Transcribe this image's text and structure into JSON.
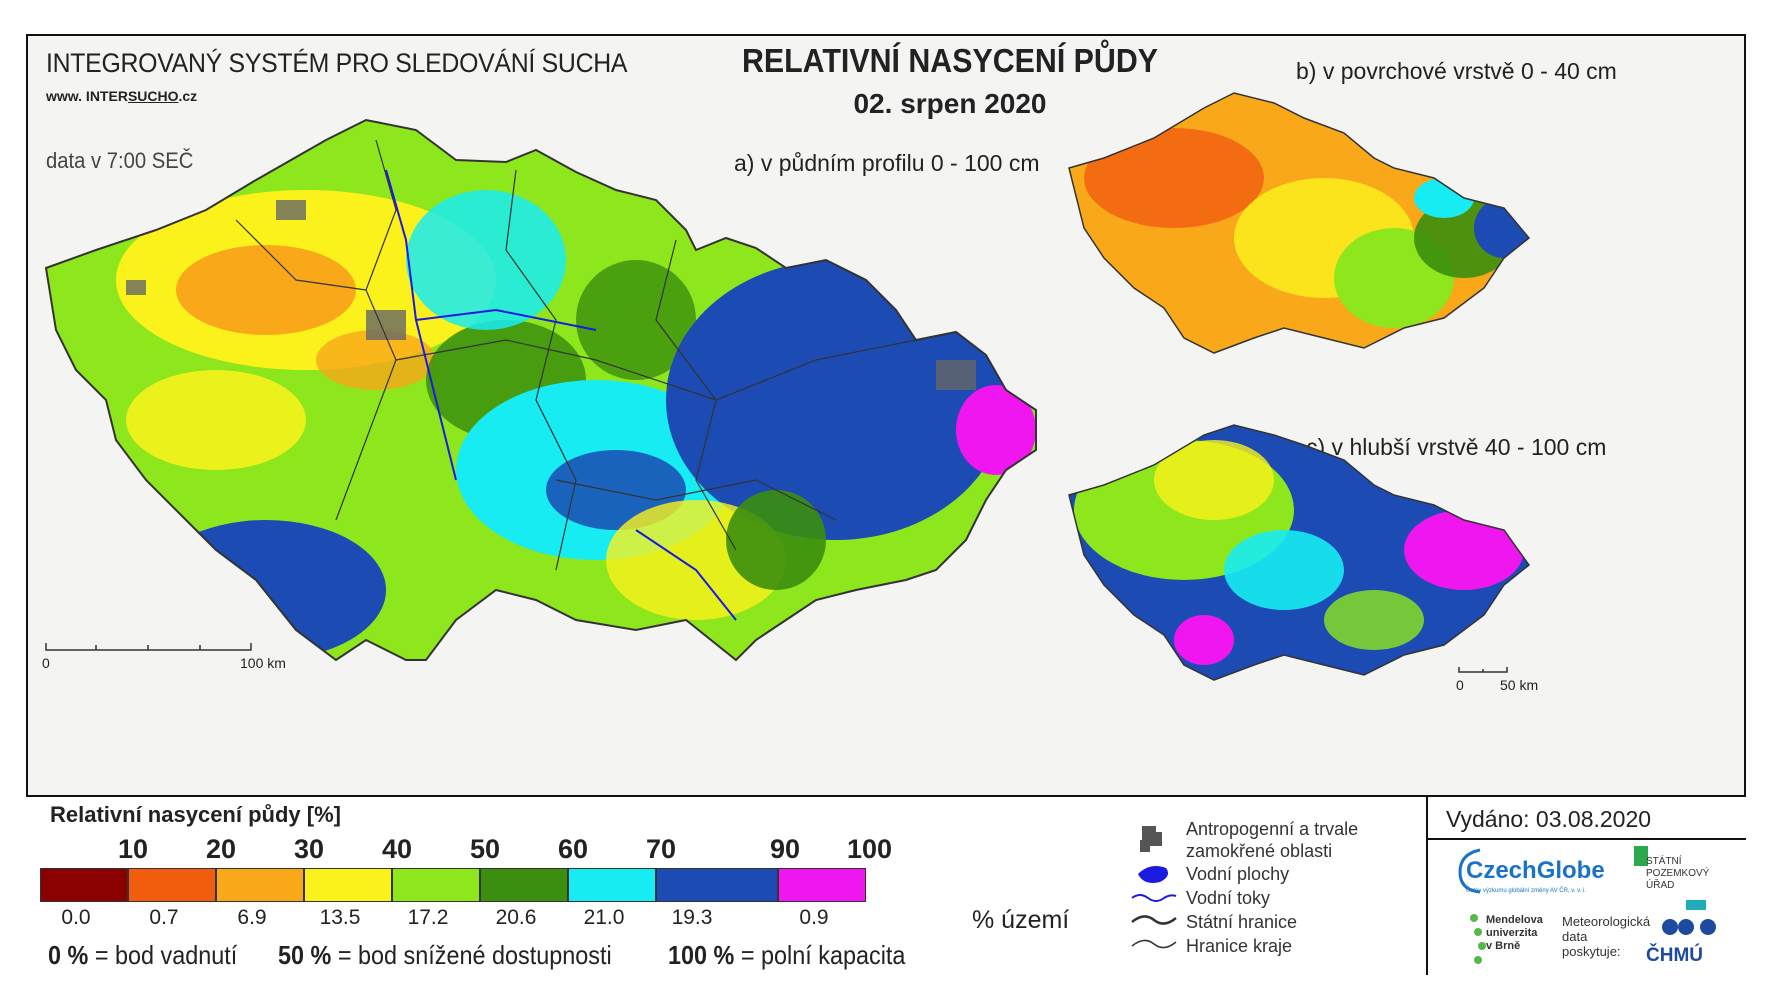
{
  "header": {
    "system_name": "INTEGROVANÝ SYSTÉM PRO SLEDOVÁNÍ SUCHA",
    "website_prefix": "www. INTER",
    "website_underlined": "SUCHO",
    "website_suffix": ".cz",
    "data_time": "data v 7:00 SEČ",
    "title": "RELATIVNÍ NASYCENÍ PŮDY",
    "date": "02. srpen 2020"
  },
  "maps": {
    "a_label": "a) v půdním profilu 0 - 100 cm",
    "b_label": "b) v povrchové vrstvě 0 - 40 cm",
    "c_label": "c) v hlubší vrstvě 40 - 100 cm",
    "scale_main_start": "0",
    "scale_main_end": "100 km",
    "scale_small_start": "0",
    "scale_small_end": "50 km"
  },
  "legend": {
    "title": "Relativní nasycení půdy [%]",
    "ticks": [
      "10",
      "20",
      "30",
      "40",
      "50",
      "60",
      "70",
      "90",
      "100"
    ],
    "classes": [
      {
        "color": "#8b0000",
        "share": "0.0"
      },
      {
        "color": "#f25c0f",
        "share": "0.7"
      },
      {
        "color": "#f9a81a",
        "share": "6.9"
      },
      {
        "color": "#fbf21b",
        "share": "13.5"
      },
      {
        "color": "#8ee61d",
        "share": "17.2"
      },
      {
        "color": "#3b8e0e",
        "share": "20.6"
      },
      {
        "color": "#17ecf2",
        "share": "21.0"
      },
      {
        "color": "#1b4bb3",
        "share": "19.3"
      },
      {
        "color": "#f016f0",
        "share": "0.9"
      }
    ],
    "share_unit": "% území",
    "def_0_num": "0 %",
    "def_0_text": " = bod vadnutí",
    "def_50_num": "50 %",
    "def_50_text": " = bod snížené dostupnosti",
    "def_100_num": "100 %",
    "def_100_text": " = polní kapacita"
  },
  "symbols": {
    "anthropogenic": "Antropogenní a trvale zamokřené oblasti",
    "water_bodies": "Vodní plochy",
    "rivers": "Vodní toky",
    "state_border": "Státní hranice",
    "region_border": "Hranice kraje"
  },
  "issued": "Vydáno: 03.08.2020",
  "logos": {
    "czechglobe": "CzechGlobe",
    "czechglobe_sub": "Ústav výzkumu globální změny AV ČR, v. v. i.",
    "spu_line1": "STÁTNÍ",
    "spu_line2": "POZEMKOVÝ",
    "spu_line3": "ÚŘAD",
    "mendel_line1": "Mendelova",
    "mendel_line2": "univerzita",
    "mendel_line3": "v Brně",
    "meteo_line1": "Meteorologická",
    "meteo_line2": "data",
    "meteo_line3": "poskytuje:",
    "chmu": "ČHMÚ"
  }
}
